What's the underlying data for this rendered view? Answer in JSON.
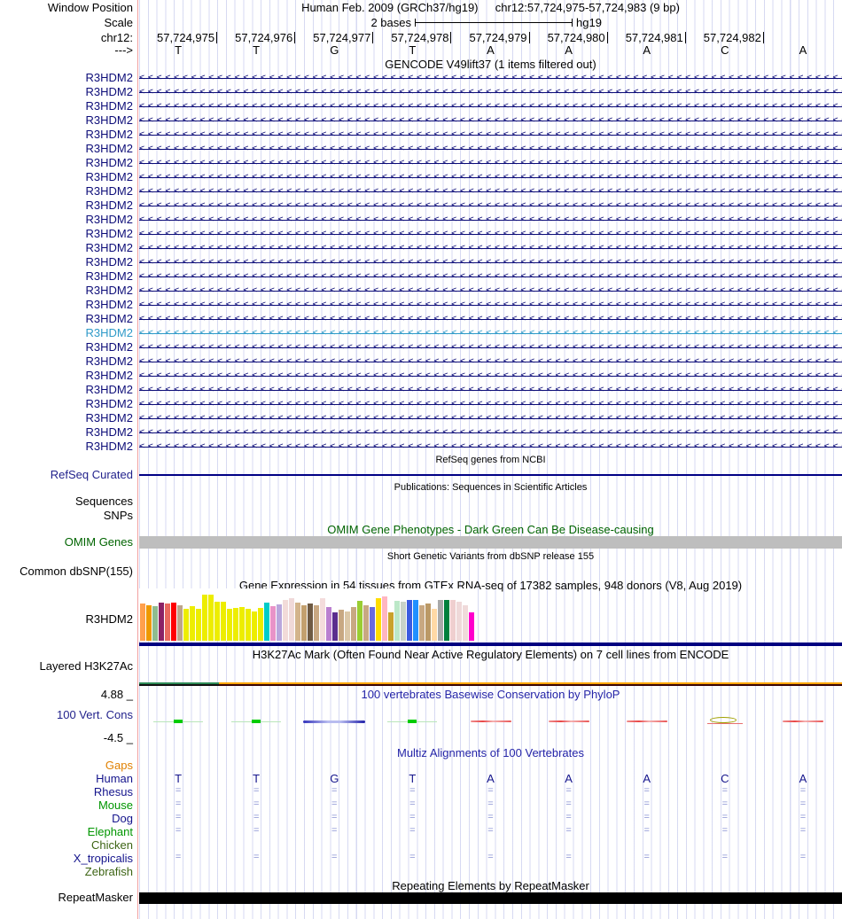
{
  "header": {
    "window_position_label": "Window Position",
    "assembly_text": "Human Feb. 2009 (GRCh37/hg19)",
    "position_text": "chr12:57,724,975-57,724,983 (9 bp)",
    "scale_label": "Scale",
    "scale_amount": "2 bases",
    "scale_assembly": "hg19",
    "chrom_label": "chr12:",
    "coordinates": [
      "57,724,975",
      "57,724,976",
      "57,724,977",
      "57,724,978",
      "57,724,979",
      "57,724,980",
      "57,724,981",
      "57,724,982"
    ],
    "strand_label": "--->",
    "bases": [
      "T",
      "T",
      "G",
      "T",
      "A",
      "A",
      "A",
      "C",
      "A"
    ]
  },
  "gencode": {
    "title": "GENCODE V49lift37 (1 items filtered out)",
    "normal_color": "#0c0c78",
    "highlight_color": "#2e9ac8",
    "arrow_char": "<",
    "items": [
      {
        "label": "R3HDM2",
        "highlighted": false
      },
      {
        "label": "R3HDM2",
        "highlighted": false
      },
      {
        "label": "R3HDM2",
        "highlighted": false
      },
      {
        "label": "R3HDM2",
        "highlighted": false
      },
      {
        "label": "R3HDM2",
        "highlighted": false
      },
      {
        "label": "R3HDM2",
        "highlighted": false
      },
      {
        "label": "R3HDM2",
        "highlighted": false
      },
      {
        "label": "R3HDM2",
        "highlighted": false
      },
      {
        "label": "R3HDM2",
        "highlighted": false
      },
      {
        "label": "R3HDM2",
        "highlighted": false
      },
      {
        "label": "R3HDM2",
        "highlighted": false
      },
      {
        "label": "R3HDM2",
        "highlighted": false
      },
      {
        "label": "R3HDM2",
        "highlighted": false
      },
      {
        "label": "R3HDM2",
        "highlighted": false
      },
      {
        "label": "R3HDM2",
        "highlighted": false
      },
      {
        "label": "R3HDM2",
        "highlighted": false
      },
      {
        "label": "R3HDM2",
        "highlighted": false
      },
      {
        "label": "R3HDM2",
        "highlighted": false
      },
      {
        "label": "R3HDM2",
        "highlighted": true
      },
      {
        "label": "R3HDM2",
        "highlighted": false
      },
      {
        "label": "R3HDM2",
        "highlighted": false
      },
      {
        "label": "R3HDM2",
        "highlighted": false
      },
      {
        "label": "R3HDM2",
        "highlighted": false
      },
      {
        "label": "R3HDM2",
        "highlighted": false
      },
      {
        "label": "R3HDM2",
        "highlighted": false
      },
      {
        "label": "R3HDM2",
        "highlighted": false
      },
      {
        "label": "R3HDM2",
        "highlighted": false
      }
    ]
  },
  "refseq": {
    "title": "RefSeq genes from NCBI",
    "label": "RefSeq Curated",
    "line_color": "#000085"
  },
  "publications": {
    "title": "Publications: Sequences in Scientific Articles",
    "row1_label": "Sequences",
    "row2_label": "SNPs"
  },
  "omim": {
    "title": "OMIM Gene Phenotypes - Dark Green Can Be Disease-causing",
    "label": "OMIM Genes",
    "title_color": "#006400",
    "bar_color": "#bebebe"
  },
  "dbsnp": {
    "title": "Short Genetic Variants from dbSNP release 155",
    "label": "Common dbSNP(155)"
  },
  "chart_data": {
    "type": "bar",
    "title": "Gene Expression in 54 tissues from GTEx RNA-seq of 17382 samples, 948 donors (V8, Aug 2019)",
    "gene_label": "R3HDM2",
    "ylabel": "",
    "note": "tissue names not shown in image; bar colors follow GTEx tissue palette",
    "gene_model_color": "#000080",
    "bars": [
      {
        "color": "#ffa04d",
        "value": 42
      },
      {
        "color": "#ee9900",
        "value": 40
      },
      {
        "color": "#8fbc8f",
        "value": 39
      },
      {
        "color": "#8b2266",
        "value": 43
      },
      {
        "color": "#e9695f",
        "value": 42
      },
      {
        "color": "#ff0000",
        "value": 43
      },
      {
        "color": "#bda58a",
        "value": 40
      },
      {
        "color": "#eded00",
        "value": 36
      },
      {
        "color": "#eded00",
        "value": 39
      },
      {
        "color": "#eded00",
        "value": 36
      },
      {
        "color": "#eded00",
        "value": 52
      },
      {
        "color": "#eded00",
        "value": 52
      },
      {
        "color": "#eded00",
        "value": 44
      },
      {
        "color": "#eded00",
        "value": 44
      },
      {
        "color": "#eded00",
        "value": 36
      },
      {
        "color": "#eded00",
        "value": 37
      },
      {
        "color": "#eded00",
        "value": 38
      },
      {
        "color": "#eded00",
        "value": 36
      },
      {
        "color": "#eded00",
        "value": 33
      },
      {
        "color": "#eded00",
        "value": 37
      },
      {
        "color": "#00cdc9",
        "value": 43
      },
      {
        "color": "#e893c8",
        "value": 39
      },
      {
        "color": "#b9a6dc",
        "value": 41
      },
      {
        "color": "#f2dbd9",
        "value": 46
      },
      {
        "color": "#f0d9d9",
        "value": 48
      },
      {
        "color": "#d3b48c",
        "value": 43
      },
      {
        "color": "#c3a06e",
        "value": 40
      },
      {
        "color": "#6e5a43",
        "value": 42
      },
      {
        "color": "#c8a882",
        "value": 40
      },
      {
        "color": "#f4dcdc",
        "value": 48
      },
      {
        "color": "#ba7fd0",
        "value": 38
      },
      {
        "color": "#5b2d8e",
        "value": 32
      },
      {
        "color": "#c8a882",
        "value": 35
      },
      {
        "color": "#dcc8a8",
        "value": 33
      },
      {
        "color": "#c8a882",
        "value": 38
      },
      {
        "color": "#9acd32",
        "value": 45
      },
      {
        "color": "#c8a882",
        "value": 40
      },
      {
        "color": "#6a6ae0",
        "value": 38
      },
      {
        "color": "#ffdd00",
        "value": 48
      },
      {
        "color": "#ffb6c1",
        "value": 50
      },
      {
        "color": "#c9a22b",
        "value": 32
      },
      {
        "color": "#bce8c8",
        "value": 45
      },
      {
        "color": "#c9d2c9",
        "value": 44
      },
      {
        "color": "#3c5be0",
        "value": 46
      },
      {
        "color": "#2090ff",
        "value": 46
      },
      {
        "color": "#c8a882",
        "value": 40
      },
      {
        "color": "#bb9966",
        "value": 42
      },
      {
        "color": "#ffd9a6",
        "value": 36
      },
      {
        "color": "#a9a9a9",
        "value": 46
      },
      {
        "color": "#00803c",
        "value": 46
      },
      {
        "color": "#efcfcf",
        "value": 46
      },
      {
        "color": "#efd9d9",
        "value": 44
      },
      {
        "color": "#f0dada",
        "value": 40
      },
      {
        "color": "#ff00cc",
        "value": 32
      }
    ]
  },
  "h3k27ac": {
    "title": "H3K27Ac Mark (Often Found Near Active Regulatory Elements) on 7 cell lines from ENCODE",
    "label": "Layered H3K27Ac",
    "seg_colors": {
      "top_left": "#2e8b57",
      "top_right": "#ffa500",
      "bottom_left": "#101010",
      "bottom_right": "#3a0505"
    }
  },
  "phylop": {
    "title": "100 vertebrates Basewise Conservation by PhyloP",
    "label": "100 Vert. Cons",
    "max_label": "4.88 _",
    "min_label": "-4.5 _",
    "marks": [
      "green",
      "green",
      "blue",
      "green",
      "red",
      "red",
      "red",
      "olive",
      "red"
    ]
  },
  "multiz": {
    "title": "Multiz Alignments of 100 Vertebrates",
    "gaps_label": "Gaps",
    "gaps_color": "#e08000",
    "match_glyph": "=",
    "human_bases": [
      "T",
      "T",
      "G",
      "T",
      "A",
      "A",
      "A",
      "C",
      "A"
    ],
    "species": [
      {
        "name": "Human",
        "color": "#14148c",
        "cells": "bases"
      },
      {
        "name": "Rhesus",
        "color": "#14148c",
        "cells": "eq"
      },
      {
        "name": "Mouse",
        "color": "#009600",
        "cells": "eq"
      },
      {
        "name": "Dog",
        "color": "#14148c",
        "cells": "eq"
      },
      {
        "name": "Elephant",
        "color": "#009600",
        "cells": "eq"
      },
      {
        "name": "Chicken",
        "color": "#3d6414",
        "cells": "none"
      },
      {
        "name": "X_tropicalis",
        "color": "#14148c",
        "cells": "eq"
      },
      {
        "name": "Zebrafish",
        "color": "#3d6414",
        "cells": "none"
      }
    ]
  },
  "repeatmasker": {
    "title": "Repeating Elements by RepeatMasker",
    "label": "RepeatMasker",
    "bar_color": "#000000"
  }
}
